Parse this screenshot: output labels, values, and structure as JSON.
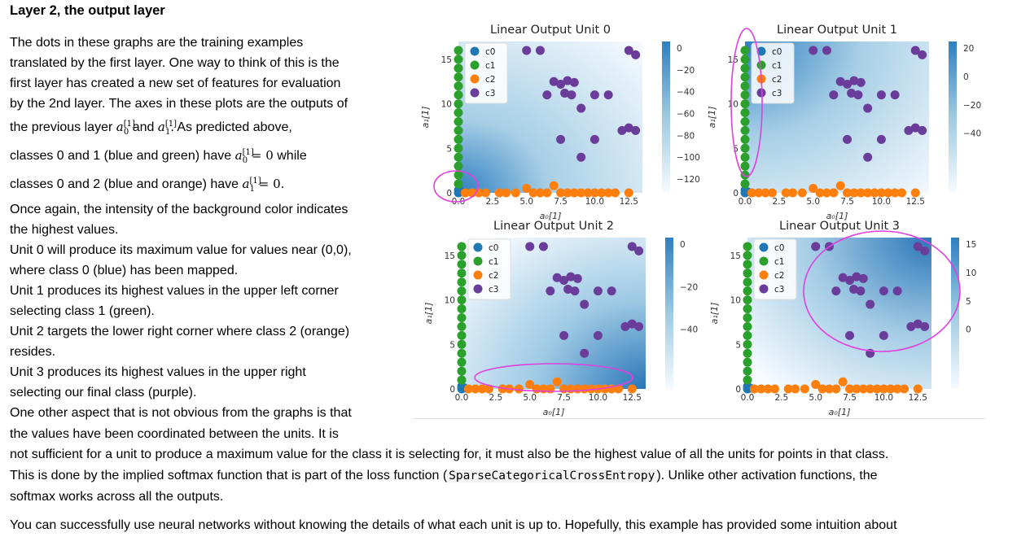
{
  "heading": "Layer 2, the output layer",
  "para": {
    "line1": "The dots in these graphs are the training examples",
    "line2": "translated by the first layer. One way to think of this is the",
    "line3": "first layer has created a new set of features for evaluation",
    "line4": "by the 2nd layer. The axes in these plots are the outputs of",
    "line5_pre": "the previous layer",
    "line5_and": "and",
    "line5_post": ". As predicted above,",
    "line6_pre": "classes 0 and 1 (blue and green) have",
    "line6_post": "while",
    "line7_pre": "classes 0 and 2 (blue and orange) have",
    "line8": "Once again, the intensity of the background color indicates",
    "line9": "the highest values.",
    "line10": "Unit 0 will produce its maximum value for values near (0,0),",
    "line11": "where class 0 (blue) has been mapped.",
    "line12": "Unit 1 produces its highest values in the upper left corner",
    "line13": "selecting class 1 (green).",
    "line14": "Unit 2 targets the lower right corner where class 2 (orange)",
    "line15": "resides.",
    "line16": "Unit 3 produces its highest values in the upper right",
    "line17": "selecting our final class (purple)."
  },
  "math": {
    "a": "a",
    "sub0": "0",
    "sub1": "1",
    "sup": "[1]",
    "eq": " = 0",
    "eq_dot": " = 0."
  },
  "tail": {
    "line1": "One other aspect that is not obvious from the graphs is that",
    "line2": "the values have been coordinated between the units. It is",
    "line3": "not sufficient for a unit to produce a maximum value for the class it is selecting for, it must also be the highest value of all the units for points in that class.",
    "line4_pre": "This is done by the implied softmax function that is part of the loss function (",
    "line4_code": "SparseCategoricalCrossEntropy",
    "line4_post": "). Unlike other activation functions, the",
    "line5": "softmax works across all the outputs."
  },
  "last_line": "You can successfully use neural networks without knowing the details of what each unit is up to. Hopefully, this example has provided some intuition about",
  "figure": {
    "xlabel": "a₀[1]",
    "ylabel": "a₁[1]",
    "legend": [
      "c0",
      "c1",
      "c2",
      "c3"
    ],
    "class_colors": [
      "#1f77b4",
      "#2ca02c",
      "#ff7f0e",
      "#6a3d9a"
    ],
    "highlight_color": "#e040e0",
    "xticks": [
      "0.0",
      "2.5",
      "5.0",
      "7.5",
      "10.0",
      "12.5"
    ],
    "yticks": [
      "0",
      "5",
      "10",
      "15"
    ],
    "units": [
      {
        "title": "Linear Output Unit 0",
        "colorbar_ticks": [
          "0",
          "−20",
          "−40",
          "−60",
          "−80",
          "−100",
          "−120"
        ],
        "show_xlabel": true
      },
      {
        "title": "Linear Output Unit 1",
        "colorbar_ticks": [
          "20",
          "0",
          "−20",
          "−40"
        ],
        "show_xlabel": true
      },
      {
        "title": "Linear Output Unit 2",
        "colorbar_ticks": [
          "0",
          "−20",
          "−40"
        ],
        "show_xlabel": true
      },
      {
        "title": "Linear Output Unit 3",
        "colorbar_ticks": [
          "15",
          "10",
          "5",
          "0"
        ],
        "show_xlabel": true
      }
    ],
    "points": {
      "c0": [
        [
          0,
          0
        ],
        [
          0,
          0.3
        ],
        [
          0.2,
          0.1
        ]
      ],
      "c1": [
        [
          0,
          1
        ],
        [
          0,
          2
        ],
        [
          0,
          3
        ],
        [
          0,
          4
        ],
        [
          0,
          5
        ],
        [
          0,
          6
        ],
        [
          0,
          7
        ],
        [
          0,
          8
        ],
        [
          0,
          9
        ],
        [
          0,
          10
        ],
        [
          0,
          11
        ],
        [
          0,
          12
        ],
        [
          0,
          13
        ],
        [
          0,
          14
        ],
        [
          0,
          15
        ],
        [
          0,
          16
        ]
      ],
      "c2": [
        [
          0.5,
          0
        ],
        [
          1,
          0
        ],
        [
          1.5,
          0
        ],
        [
          2,
          0
        ],
        [
          3,
          0
        ],
        [
          3.5,
          0
        ],
        [
          4.2,
          0
        ],
        [
          5,
          0.5
        ],
        [
          5.5,
          0
        ],
        [
          6,
          0
        ],
        [
          6.5,
          0
        ],
        [
          7,
          0.8
        ],
        [
          7.5,
          0
        ],
        [
          8,
          0
        ],
        [
          8.5,
          0
        ],
        [
          9,
          0
        ],
        [
          9.5,
          0
        ],
        [
          10,
          0
        ],
        [
          10.5,
          0
        ],
        [
          11,
          0
        ],
        [
          11.5,
          0
        ],
        [
          12.5,
          0
        ]
      ],
      "c3": [
        [
          5,
          16
        ],
        [
          6,
          16
        ],
        [
          7,
          12.5
        ],
        [
          7.5,
          12.2
        ],
        [
          8,
          12.6
        ],
        [
          8.5,
          12.4
        ],
        [
          7.8,
          11.2
        ],
        [
          8.3,
          11
        ],
        [
          6.5,
          11
        ],
        [
          10,
          11
        ],
        [
          11,
          11
        ],
        [
          9,
          9.5
        ],
        [
          12.5,
          16
        ],
        [
          13,
          15.5
        ],
        [
          7.5,
          6
        ],
        [
          10,
          6
        ],
        [
          12,
          7
        ],
        [
          12.5,
          7.3
        ],
        [
          13,
          7
        ],
        [
          9,
          4
        ]
      ]
    }
  }
}
